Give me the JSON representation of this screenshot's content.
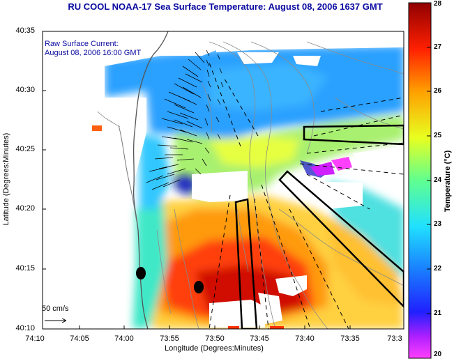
{
  "title": "RU COOL  NOAA-17  Sea Surface Temperature:  August 08, 2006 1637 GMT",
  "inset": {
    "line1": "Raw Surface Current:",
    "line2": "August 08, 2006 16:00 GMT"
  },
  "axes": {
    "xlabel": "Longitude (Degrees:Minutes)",
    "ylabel": "Latitude (Degrees:Minutes)",
    "xticks": [
      "74:10",
      "74:05",
      "74:00",
      "73:55",
      "73:50",
      "73:45",
      "73:40",
      "73:35",
      "73:3"
    ],
    "yticks": [
      "40:35",
      "40:30",
      "40:25",
      "40:20",
      "40:15",
      "40:10"
    ]
  },
  "colorbar": {
    "label": "Temperature (°C)",
    "ticks": [
      "28",
      "27",
      "26",
      "25",
      "24",
      "23",
      "22",
      "21",
      "20"
    ],
    "min": 20,
    "max": 28
  },
  "scale_label": "50 cm/s",
  "colors": {
    "title_blue": "#0a0aa0",
    "land": "#ffffff",
    "contour": "#8a8a8a"
  }
}
